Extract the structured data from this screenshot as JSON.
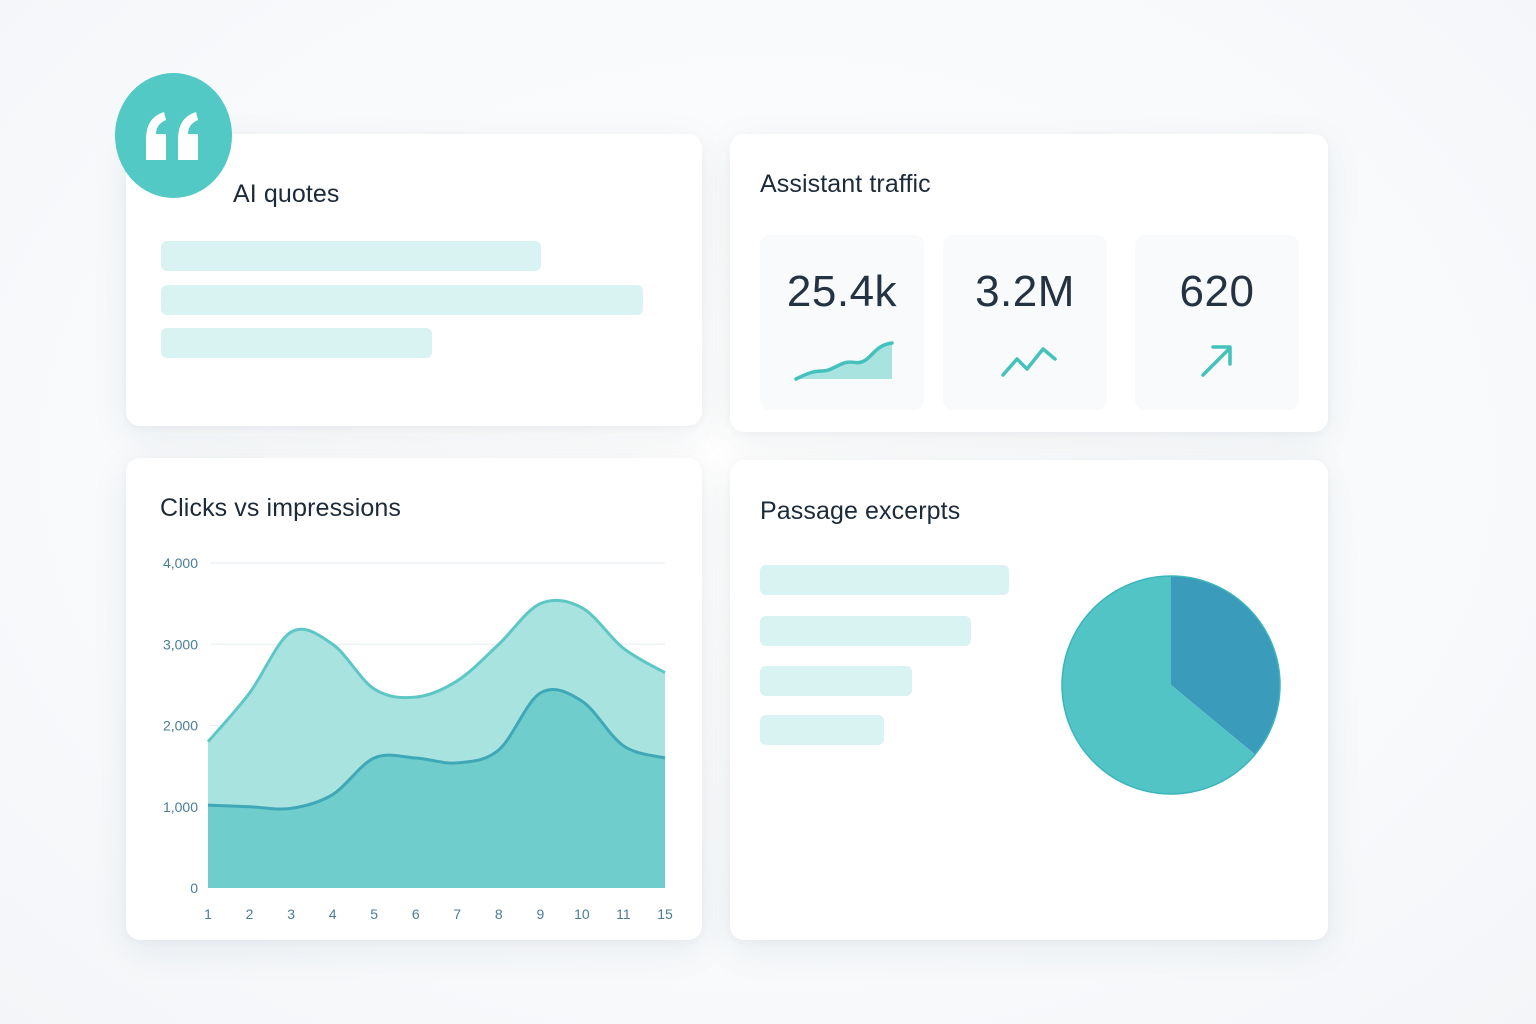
{
  "quotes_card": {
    "title": "AI quotes",
    "icon": "quote-icon",
    "accent": "#52c9c5"
  },
  "traffic_card": {
    "title": "Assistant traffic",
    "stats": [
      {
        "value": "25.4k",
        "icon": "area-sparkline-icon"
      },
      {
        "value": "3.2M",
        "icon": "line-sparkline-icon"
      },
      {
        "value": "620",
        "icon": "arrow-up-right-icon"
      }
    ]
  },
  "chart_card": {
    "title": "Clicks vs impressions"
  },
  "passage_card": {
    "title": "Passage excerpts"
  },
  "chart_data": [
    {
      "type": "area",
      "title": "Clicks vs impressions",
      "x": [
        1,
        2,
        3,
        4,
        5,
        6,
        7,
        8,
        9,
        10,
        11,
        15
      ],
      "y_ticks": [
        0,
        1000,
        2000,
        3000,
        4000
      ],
      "y_tick_labels": [
        "0",
        "1,000",
        "2,000",
        "3,000",
        "4,000"
      ],
      "ylim": [
        0,
        4000
      ],
      "grid": true,
      "series": [
        {
          "values": [
            1800,
            2400,
            3150,
            3000,
            2450,
            2350,
            2550,
            3000,
            3500,
            3450,
            2950,
            2650
          ],
          "color": "#a9e3e0"
        },
        {
          "values": [
            1020,
            1000,
            980,
            1150,
            1600,
            1600,
            1540,
            1700,
            2400,
            2300,
            1750,
            1600
          ],
          "color": "#6fcdcc"
        }
      ]
    },
    {
      "type": "pie",
      "slices": [
        {
          "value": 36,
          "color": "#3a9bbb"
        },
        {
          "value": 64,
          "color": "#52c4c5"
        }
      ]
    }
  ]
}
